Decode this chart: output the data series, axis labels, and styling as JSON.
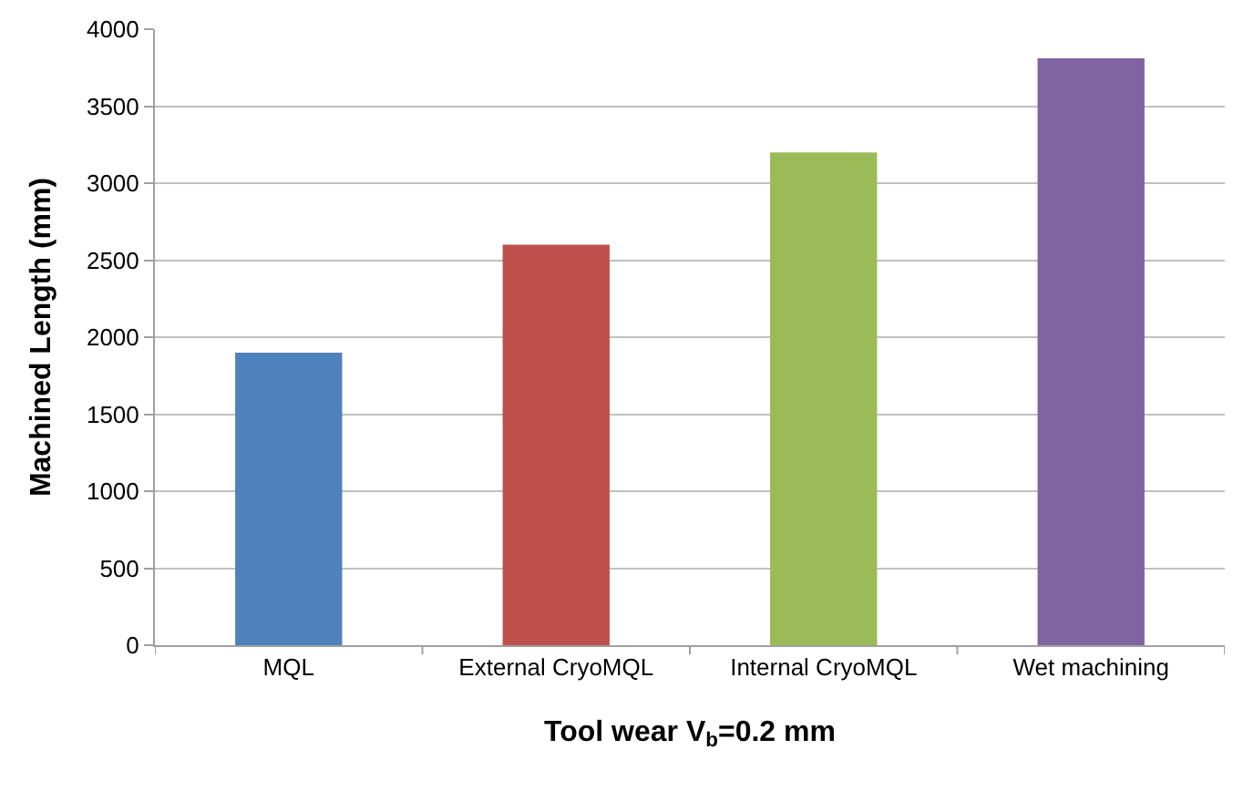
{
  "chart_data": {
    "type": "bar",
    "xlabel": "Tool wear V$_{b}$=0.2 mm",
    "ylabel": "Machined Length (mm)",
    "categories": [
      "MQL",
      "External CryoMQL",
      "Internal CryoMQL",
      "Wet machining"
    ],
    "values": [
      1900,
      2600,
      3200,
      3810
    ],
    "colors": [
      "#4f81bd",
      "#c0504d",
      "#9bbb59",
      "#8064a2"
    ],
    "ylim": [
      0,
      4000
    ],
    "yticks": [
      0,
      500,
      1000,
      1500,
      2000,
      2500,
      3000,
      3500,
      4000
    ],
    "grid": "y"
  }
}
